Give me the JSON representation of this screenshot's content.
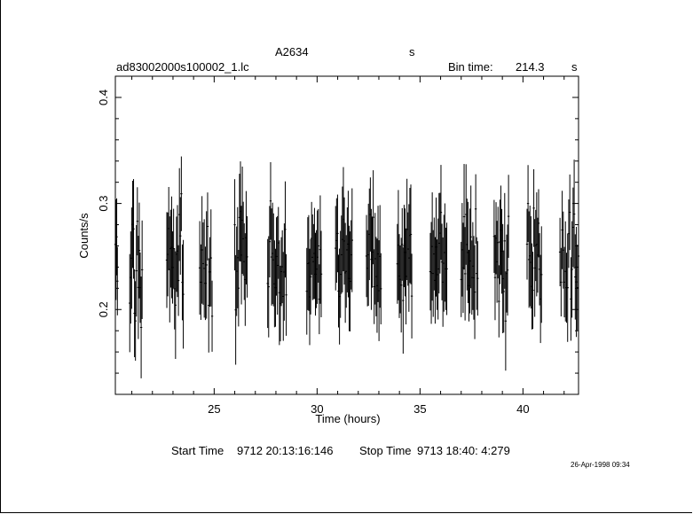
{
  "header": {
    "object": "A2634",
    "object_unit": "s",
    "filename": "ad83002000s100002_1.lc",
    "bin_label": "Bin time:",
    "bin_value": "214.3",
    "bin_unit": "s"
  },
  "footer": {
    "start_label": "Start Time",
    "start_value": "9712 20:13:16:146",
    "stop_label": "Stop Time",
    "stop_value": "9713 18:40: 4:279",
    "date_stamp": "26-Apr-1998 09:34"
  },
  "chart_data": {
    "type": "scatter",
    "title": "A2634",
    "xlabel": "Time (hours)",
    "ylabel": "Counts/s",
    "xlim": [
      20.2,
      42.7
    ],
    "ylim": [
      0.12,
      0.42
    ],
    "xticks": [
      25,
      30,
      35,
      40
    ],
    "yticks": [
      0.2,
      0.3,
      0.4
    ],
    "grid": false,
    "legend": "none",
    "error_bars": true,
    "segments": [
      {
        "start": 20.2,
        "end": 20.3,
        "n": 4,
        "seed": 1
      },
      {
        "start": 20.9,
        "end": 21.5,
        "n": 14,
        "seed": 2
      },
      {
        "start": 22.7,
        "end": 23.5,
        "n": 18,
        "seed": 3
      },
      {
        "start": 24.3,
        "end": 24.9,
        "n": 12,
        "seed": 4
      },
      {
        "start": 26.0,
        "end": 26.6,
        "n": 14,
        "seed": 5
      },
      {
        "start": 27.6,
        "end": 28.5,
        "n": 20,
        "seed": 6
      },
      {
        "start": 29.5,
        "end": 30.2,
        "n": 16,
        "seed": 7
      },
      {
        "start": 30.9,
        "end": 31.7,
        "n": 18,
        "seed": 8
      },
      {
        "start": 32.4,
        "end": 33.1,
        "n": 16,
        "seed": 9
      },
      {
        "start": 33.9,
        "end": 34.6,
        "n": 16,
        "seed": 10
      },
      {
        "start": 35.5,
        "end": 36.3,
        "n": 18,
        "seed": 11
      },
      {
        "start": 37.0,
        "end": 37.8,
        "n": 18,
        "seed": 12
      },
      {
        "start": 38.6,
        "end": 39.3,
        "n": 16,
        "seed": 13
      },
      {
        "start": 40.2,
        "end": 40.9,
        "n": 16,
        "seed": 14
      },
      {
        "start": 41.8,
        "end": 42.7,
        "n": 18,
        "seed": 15
      }
    ],
    "mean": 0.245,
    "spread": 0.045,
    "err_mean": 0.04
  }
}
